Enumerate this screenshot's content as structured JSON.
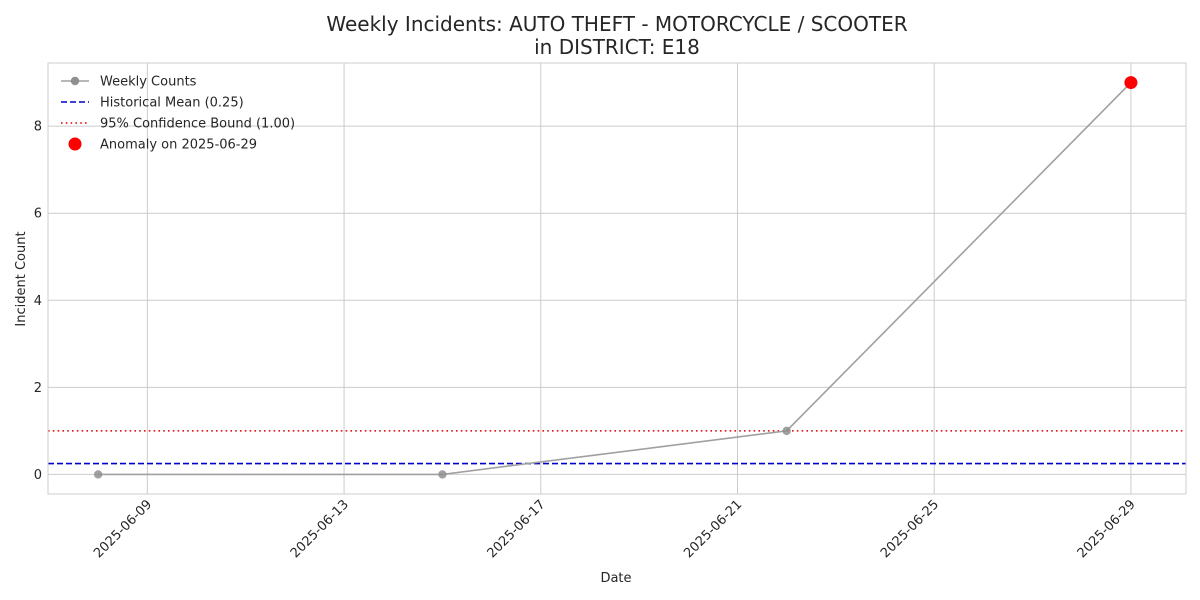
{
  "chart_data": {
    "type": "line",
    "title_line1": "Weekly Incidents: AUTO THEFT - MOTORCYCLE / SCOOTER",
    "title_line2": "in DISTRICT: E18",
    "xlabel": "Date",
    "ylabel": "Incident Count",
    "x_ticks": [
      "2025-06-09",
      "2025-06-13",
      "2025-06-17",
      "2025-06-21",
      "2025-06-25",
      "2025-06-29"
    ],
    "y_ticks": [
      0,
      2,
      4,
      6,
      8
    ],
    "x_range": [
      "2025-06-06.98",
      "2025-06-30.12"
    ],
    "ylim": [
      -0.45,
      9.45
    ],
    "grid": true,
    "legend_position": "top-left",
    "series": [
      {
        "name": "Weekly Counts",
        "kind": "line-markers",
        "color": "#a0a0a0",
        "points": [
          {
            "x": "2025-06-08",
            "y": 0
          },
          {
            "x": "2025-06-15",
            "y": 0
          },
          {
            "x": "2025-06-22",
            "y": 1
          },
          {
            "x": "2025-06-29",
            "y": 9
          }
        ]
      },
      {
        "name": "Historical Mean (0.25)",
        "kind": "hline-dashed",
        "color": "#0000cc",
        "y": 0.25
      },
      {
        "name": "95% Confidence Bound (1.00)",
        "kind": "hline-dotted",
        "color": "#e60000",
        "y": 1.0
      },
      {
        "name": "Anomaly on 2025-06-29",
        "kind": "marker",
        "color": "#ff0000",
        "points": [
          {
            "x": "2025-06-29",
            "y": 9
          }
        ]
      }
    ]
  }
}
